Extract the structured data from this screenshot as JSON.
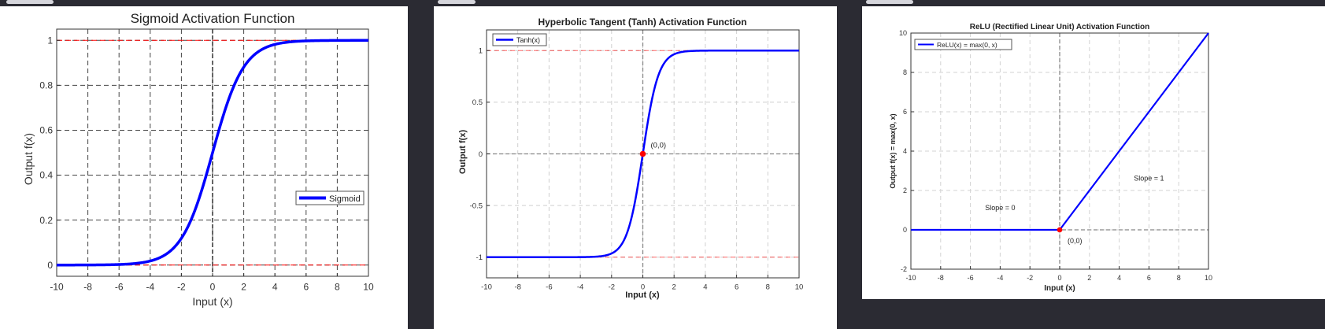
{
  "colors": {
    "curve": "#0000ff",
    "guide": "#ff0000",
    "marker": "#ff0000"
  },
  "chart_data": [
    {
      "type": "line",
      "title": "Sigmoid Activation Function",
      "xlabel": "Input (x)",
      "ylabel": "Output f(x)",
      "xlim": [
        -10,
        10
      ],
      "ylim": [
        -0.05,
        1.05
      ],
      "xticks": [
        -10,
        -8,
        -6,
        -4,
        -2,
        0,
        2,
        4,
        6,
        8,
        10
      ],
      "xtick_labels": [
        "-10",
        "-8",
        "-6",
        "-4",
        "-2",
        "0",
        "2",
        "4",
        "6",
        "8",
        "10"
      ],
      "yticks": [
        0,
        0.2,
        0.4,
        0.6,
        0.8,
        1
      ],
      "ytick_labels": [
        "0",
        "0.2",
        "0.4",
        "0.6",
        "0.8",
        "1"
      ],
      "grid": true,
      "legend": "right",
      "series": [
        {
          "name": "Sigmoid",
          "function": "1/(1+exp(-x))"
        }
      ],
      "guides": [
        0,
        1
      ]
    },
    {
      "type": "line",
      "title": "Hyperbolic Tangent (Tanh) Activation Function",
      "xlabel": "Input (x)",
      "ylabel": "Output f(x)",
      "xlim": [
        -10,
        10
      ],
      "ylim": [
        -1.2,
        1.2
      ],
      "xticks": [
        -10,
        -8,
        -6,
        -4,
        -2,
        0,
        2,
        4,
        6,
        8,
        10
      ],
      "xtick_labels": [
        "-10",
        "-8",
        "-6",
        "-4",
        "-2",
        "0",
        "2",
        "4",
        "6",
        "8",
        "10"
      ],
      "yticks": [
        -1,
        -0.5,
        0,
        0.5,
        1
      ],
      "ytick_labels": [
        "-1",
        "-0.5",
        "0",
        "0.5",
        "1"
      ],
      "grid": true,
      "legend": "top-left",
      "series": [
        {
          "name": "Tanh(x)",
          "function": "tanh(x)"
        }
      ],
      "guides": [
        -1,
        1
      ],
      "point": {
        "x": 0,
        "y": 0,
        "label": "(0,0)"
      }
    },
    {
      "type": "line",
      "title": "ReLU (Rectified Linear Unit) Activation Function",
      "xlabel": "Input (x)",
      "ylabel": "Output f(x) = max(0, x)",
      "xlim": [
        -10,
        10
      ],
      "ylim": [
        -2,
        10
      ],
      "xticks": [
        -10,
        -8,
        -6,
        -4,
        -2,
        0,
        2,
        4,
        6,
        8,
        10
      ],
      "xtick_labels": [
        "-10",
        "-8",
        "-6",
        "-4",
        "-2",
        "0",
        "2",
        "4",
        "6",
        "8",
        "10"
      ],
      "yticks": [
        -2,
        0,
        2,
        4,
        6,
        8,
        10
      ],
      "ytick_labels": [
        "-2",
        "0",
        "2",
        "4",
        "6",
        "8",
        "10"
      ],
      "grid": true,
      "legend": "top-left",
      "series": [
        {
          "name": "ReLU(x) = max(0, x)",
          "function": "max(0,x)"
        }
      ],
      "point": {
        "x": 0,
        "y": 0,
        "label": "(0,0)"
      },
      "annotations": [
        {
          "text": "Slope = 0",
          "x": -4,
          "y": 1
        },
        {
          "text": "Slope = 1",
          "x": 6,
          "y": 2.5
        }
      ]
    }
  ]
}
